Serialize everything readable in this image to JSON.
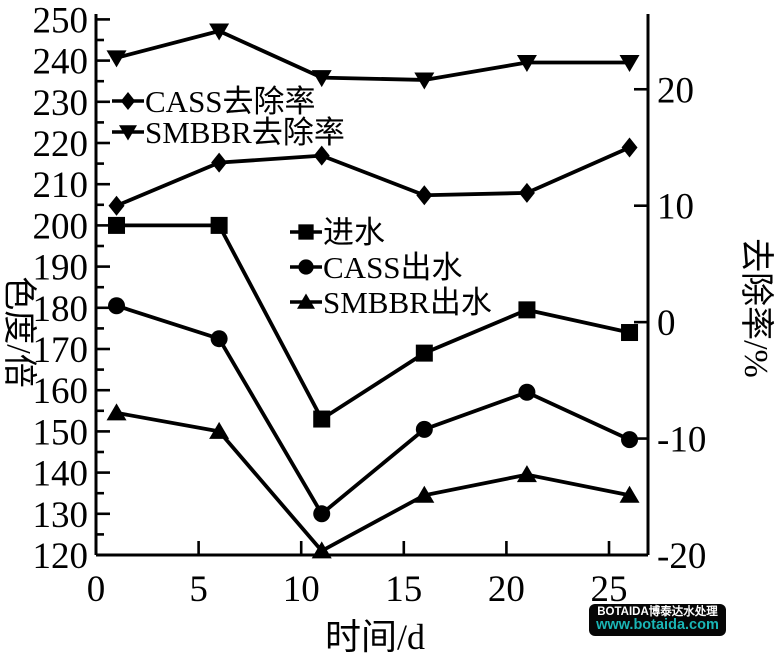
{
  "chart_data": {
    "type": "line",
    "x": [
      1,
      6,
      11,
      16,
      21,
      26
    ],
    "xlabel": "时间/d",
    "ylabel_left": "色度/倍",
    "ylabel_right": "去除率/%",
    "x_ticks": [
      0,
      5,
      10,
      15,
      20,
      25
    ],
    "xlim": [
      0,
      26.9
    ],
    "ylim_left": [
      120,
      250
    ],
    "left_major_ticks": [
      120,
      130,
      140,
      150,
      160,
      170,
      180,
      190,
      200,
      210,
      220,
      230,
      240,
      250
    ],
    "left_minor_step": 5,
    "ylim_right": [
      -20,
      26
    ],
    "right_ticks": [
      -20,
      -10,
      0,
      10,
      20
    ],
    "grid": "off",
    "line_color": "#000000",
    "series": [
      {
        "key": "influent",
        "name": "进水",
        "axis": "left",
        "marker": "square",
        "values": [
          200,
          200,
          153,
          169,
          179.5,
          174
        ]
      },
      {
        "key": "cass-effluent",
        "name": "CASS出水",
        "axis": "left",
        "marker": "circle",
        "values": [
          180.5,
          172.5,
          130,
          150.5,
          159.5,
          148
        ]
      },
      {
        "key": "smbbr-effluent",
        "name": "SMBBR出水",
        "axis": "left",
        "marker": "triangle-up",
        "values": [
          154.5,
          150,
          121,
          134.5,
          139.5,
          134.5
        ]
      },
      {
        "key": "cass-removal",
        "name": "CASS去除率",
        "axis": "right",
        "marker": "diamond",
        "values": [
          10.0,
          13.7,
          14.3,
          10.9,
          11.1,
          15.0
        ]
      },
      {
        "key": "smbbr-removal",
        "name": "SMBBR去除率",
        "axis": "right",
        "marker": "triangle-down",
        "values": [
          22.7,
          25.0,
          21.0,
          20.8,
          22.3,
          22.3
        ]
      }
    ],
    "legends": [
      {
        "position": "upper-left",
        "items": [
          {
            "marker": "diamond",
            "label": "CASS去除率"
          },
          {
            "marker": "triangle-down",
            "label": "SMBBR去除率"
          }
        ]
      },
      {
        "position": "center",
        "items": [
          {
            "marker": "square",
            "label": "进水"
          },
          {
            "marker": "circle",
            "label": "CASS出水"
          },
          {
            "marker": "triangle-up",
            "label": "SMBBR出水"
          }
        ]
      }
    ]
  },
  "watermark": {
    "line1": "BOTAIDA博泰达水处理",
    "line2": "www.botaida.com",
    "bg_color": "#060606",
    "line1_color": "#ffffff",
    "line2_color": "#1ab5b5"
  }
}
